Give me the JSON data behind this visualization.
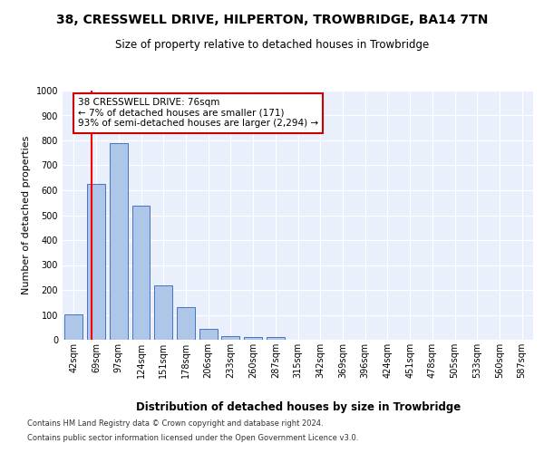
{
  "title": "38, CRESSWELL DRIVE, HILPERTON, TROWBRIDGE, BA14 7TN",
  "subtitle": "Size of property relative to detached houses in Trowbridge",
  "xlabel": "Distribution of detached houses by size in Trowbridge",
  "ylabel": "Number of detached properties",
  "bar_color": "#aec6e8",
  "bar_edge_color": "#4472c4",
  "bins": [
    "42sqm",
    "69sqm",
    "97sqm",
    "124sqm",
    "151sqm",
    "178sqm",
    "206sqm",
    "233sqm",
    "260sqm",
    "287sqm",
    "315sqm",
    "342sqm",
    "369sqm",
    "396sqm",
    "424sqm",
    "451sqm",
    "478sqm",
    "505sqm",
    "533sqm",
    "560sqm",
    "587sqm"
  ],
  "values": [
    102,
    625,
    790,
    540,
    220,
    130,
    42,
    15,
    10,
    10,
    0,
    0,
    0,
    0,
    0,
    0,
    0,
    0,
    0,
    0,
    0
  ],
  "ylim": [
    0,
    1000
  ],
  "yticks": [
    0,
    100,
    200,
    300,
    400,
    500,
    600,
    700,
    800,
    900,
    1000
  ],
  "annotation_text": "38 CRESSWELL DRIVE: 76sqm\n← 7% of detached houses are smaller (171)\n93% of semi-detached houses are larger (2,294) →",
  "annotation_box_color": "#ffffff",
  "annotation_box_edge_color": "#cc0000",
  "background_color": "#eaf0fb",
  "grid_color": "#ffffff",
  "footer_line1": "Contains HM Land Registry data © Crown copyright and database right 2024.",
  "footer_line2": "Contains public sector information licensed under the Open Government Licence v3.0.",
  "title_fontsize": 10,
  "subtitle_fontsize": 8.5,
  "ylabel_fontsize": 8,
  "xlabel_fontsize": 8.5,
  "tick_fontsize": 7,
  "annotation_fontsize": 7.5,
  "footer_fontsize": 6
}
